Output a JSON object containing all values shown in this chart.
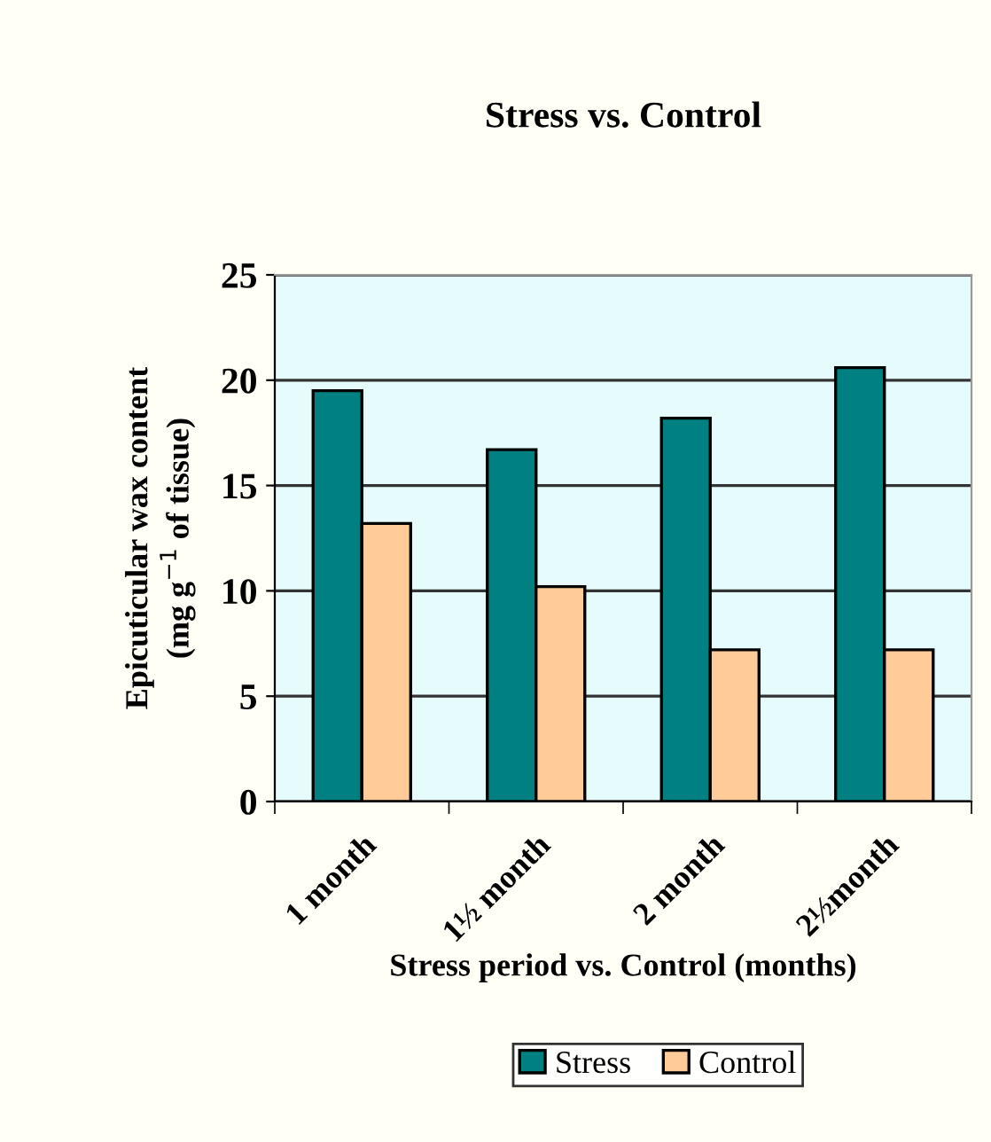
{
  "chart_data": {
    "type": "bar",
    "title": "Stress vs. Control",
    "xlabel": "Stress period vs. Control (months)",
    "ylabel": "Epicuticular wax content\n(mg g$^{−1}$ of tissue)",
    "categories": [
      "1 month",
      "1½ month",
      "2 month",
      "2½month"
    ],
    "series": [
      {
        "name": "Stress",
        "color": "#008080",
        "values": [
          19.5,
          16.7,
          18.2,
          20.6
        ]
      },
      {
        "name": "Control",
        "color": "#ffcc99",
        "values": [
          13.2,
          10.2,
          7.2,
          7.2
        ]
      }
    ],
    "ylim": [
      0,
      25
    ],
    "yticks": [
      0,
      5,
      10,
      15,
      20,
      25
    ],
    "grid": "y",
    "legend": "bottom"
  }
}
